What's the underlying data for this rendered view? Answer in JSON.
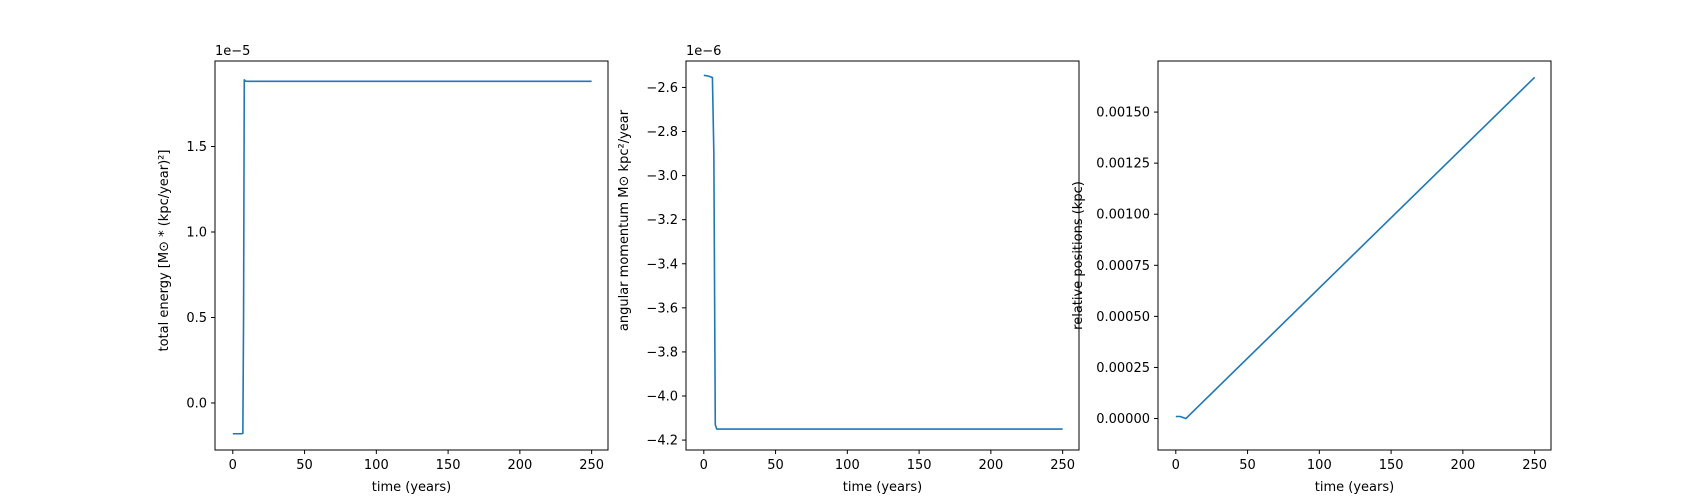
{
  "chart_data": [
    {
      "type": "line",
      "xlabel": "time (years)",
      "ylabel": "total energy [M⊙ * (kpc/year)²]",
      "offset_text": "1e−5",
      "xlim": [
        -12.4,
        261.4
      ],
      "ylim": [
        -0.275,
        2.0
      ],
      "xticks": [
        0,
        50,
        100,
        150,
        200,
        250
      ],
      "yticks": [
        0.0,
        0.5,
        1.0,
        1.5
      ],
      "ytick_labels": [
        "0.0",
        "0.5",
        "1.0",
        "1.5"
      ],
      "grid": false,
      "series": [
        {
          "color": "#1f77b4",
          "x": [
            0,
            6,
            7,
            7.5,
            8,
            9,
            10,
            20,
            50,
            100,
            150,
            200,
            250
          ],
          "y": [
            -0.18,
            -0.18,
            -0.178,
            0.5,
            1.89,
            1.882,
            1.881,
            1.881,
            1.881,
            1.881,
            1.881,
            1.881,
            1.881
          ]
        }
      ]
    },
    {
      "type": "line",
      "xlabel": "time (years)",
      "ylabel": "angular momentum M⊙ kpc²/year",
      "offset_text": "1e−6",
      "xlim": [
        -12.4,
        261.4
      ],
      "ylim": [
        -4.245,
        -2.48
      ],
      "xticks": [
        0,
        50,
        100,
        150,
        200,
        250
      ],
      "yticks": [
        -2.6,
        -2.8,
        -3.0,
        -3.2,
        -3.4,
        -3.6,
        -3.8,
        -4.0,
        -4.2
      ],
      "ytick_labels": [
        "−2.6",
        "−2.8",
        "−3.0",
        "−3.2",
        "−3.4",
        "−3.6",
        "−3.8",
        "−4.0",
        "−4.2"
      ],
      "grid": false,
      "series": [
        {
          "color": "#1f77b4",
          "x": [
            0,
            3,
            6,
            7,
            8,
            9,
            10,
            20,
            50,
            100,
            150,
            200,
            250
          ],
          "y": [
            -2.545,
            -2.548,
            -2.555,
            -2.9,
            -4.13,
            -4.15,
            -4.15,
            -4.15,
            -4.15,
            -4.15,
            -4.15,
            -4.15,
            -4.15
          ]
        }
      ]
    },
    {
      "type": "line",
      "xlabel": "time (years)",
      "ylabel": "relative positions (kpc)",
      "offset_text": "",
      "xlim": [
        -12.4,
        261.4
      ],
      "ylim": [
        -0.000154,
        0.00175
      ],
      "xticks": [
        0,
        50,
        100,
        150,
        200,
        250
      ],
      "yticks": [
        0.0,
        0.00025,
        0.0005,
        0.00075,
        0.001,
        0.00125,
        0.0015
      ],
      "ytick_labels": [
        "0.00000",
        "0.00025",
        "0.00050",
        "0.00075",
        "0.00100",
        "0.00125",
        "0.00150"
      ],
      "grid": false,
      "series": [
        {
          "color": "#1f77b4",
          "x": [
            0,
            3,
            7,
            250
          ],
          "y": [
            1e-05,
            1e-05,
            0.0,
            0.00167
          ]
        }
      ]
    }
  ]
}
